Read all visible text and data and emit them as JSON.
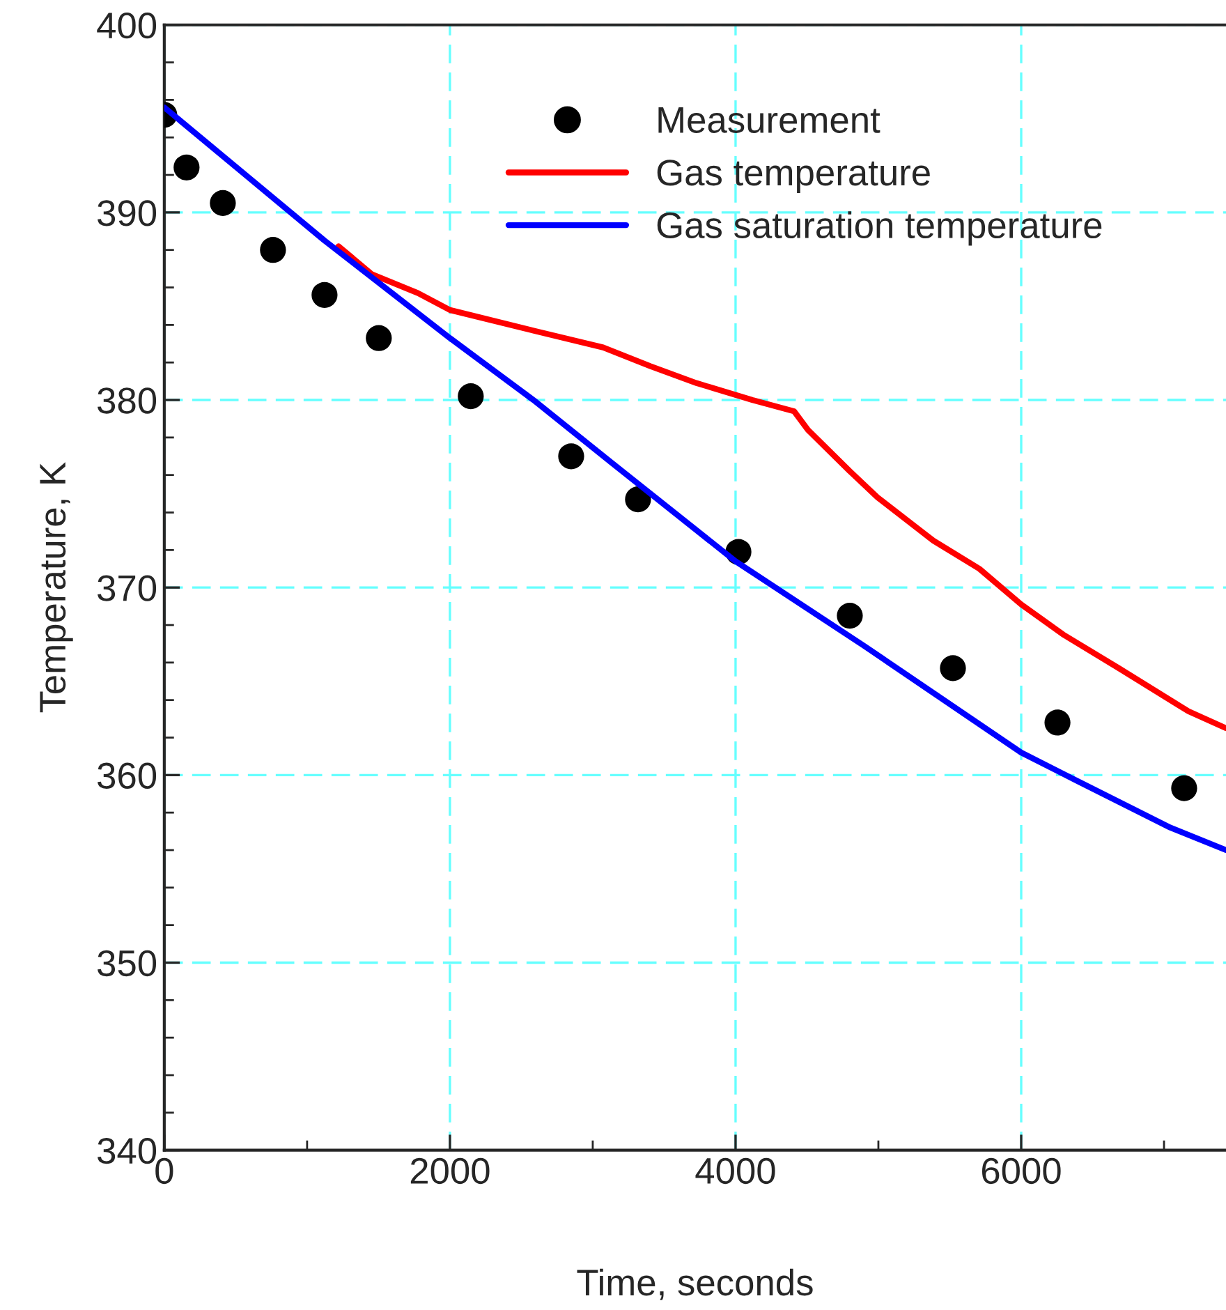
{
  "chart_data": {
    "type": "line",
    "xlabel": "Time, seconds",
    "ylabel": "Temperature, K",
    "xlim": [
      0,
      7434
    ],
    "ylim": [
      340,
      400
    ],
    "xticks": [
      0,
      2000,
      4000,
      6000
    ],
    "yticks": [
      340,
      350,
      360,
      370,
      380,
      390,
      400
    ],
    "grid": true,
    "legend": "top right",
    "series": [
      {
        "name": "Measurement",
        "type": "scatter",
        "color": "#000000",
        "marker": "circle",
        "x": [
          0,
          156,
          410,
          761,
          1122,
          1502,
          2146,
          2849,
          3317,
          4020,
          4800,
          5522,
          6254,
          7141
        ],
        "values": [
          395.2,
          392.4,
          390.5,
          388.0,
          385.6,
          383.3,
          380.2,
          377.0,
          374.7,
          371.9,
          368.5,
          365.7,
          362.8,
          359.3
        ]
      },
      {
        "name": "Gas temperature",
        "color": "#ff0000",
        "line_style": "solid",
        "x": [
          1220,
          1454,
          1776,
          2000,
          2585,
          3073,
          3405,
          3727,
          4117,
          4410,
          4507,
          4800,
          4995,
          5385,
          5707,
          6000,
          6293,
          6683,
          7171,
          7434
        ],
        "values": [
          388.2,
          386.7,
          385.7,
          384.8,
          383.7,
          382.8,
          381.8,
          380.9,
          380.0,
          379.4,
          378.4,
          376.2,
          374.8,
          372.5,
          371.0,
          369.1,
          367.5,
          365.7,
          363.4,
          362.5
        ]
      },
      {
        "name": "Gas saturation temperature",
        "color": "#0000ff",
        "line_style": "solid",
        "x": [
          0,
          1122,
          2000,
          2585,
          3141,
          4000,
          4898,
          6000,
          6390,
          7044,
          7434
        ],
        "values": [
          395.6,
          388.5,
          383.3,
          380.0,
          376.6,
          371.4,
          366.9,
          361.2,
          359.7,
          357.2,
          356.0
        ]
      }
    ]
  }
}
